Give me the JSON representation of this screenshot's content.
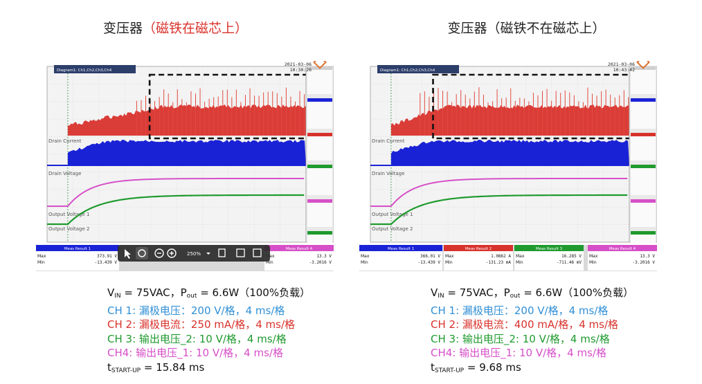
{
  "panels": [
    {
      "title_main": "变压器",
      "title_paren": "（磁铁在磁芯上）",
      "timestamp_date": "2021-03-06",
      "timestamp_time": "10:30:26",
      "diagram_label": "Diagram1: Ch1,Ch2,Ch3,Ch4",
      "traces": {
        "drain_current": "Drain Current",
        "drain_voltage": "Drain Voltage",
        "output_voltage_1": "Output Voltage 1",
        "output_voltage_2": "Output Voltage 2"
      },
      "meas": {
        "result1_title": "Meas Result 1",
        "max_label": "Max",
        "min_label": "Min",
        "max_value": "373.91 V",
        "min_value": "-13.439 V",
        "result4_title": "Meas Result 4",
        "r4_max": "13.3 V",
        "r4_min": "-3.2016 V"
      },
      "toolbar": {
        "zoom": "250%"
      },
      "captions": {
        "line1_v": "V",
        "line1_v_sub": "IN",
        "line1_rest": " = 75VAC，P",
        "line1_p_sub": "out",
        "line1_tail": " = 6.6W（100%负载）",
        "ch1": "CH 1: 漏极电压：200 V/格，4 ms/格",
        "ch2": "CH 2: 漏极电流：250 mA/格，4 ms/格",
        "ch3": "CH 3: 输出电压_2: 10 V/格，4 ms/格",
        "ch4": "CH4: 输出电压_1: 10 V/格，4 ms/格",
        "t_prefix": "t",
        "t_sub": "START-UP",
        "t_value": " = 15.84 ms"
      },
      "chart_data": {
        "type": "line",
        "xlabel": "",
        "ylabel": "",
        "x_unit": "ms",
        "xlim": [
          0,
          40
        ],
        "series": [
          {
            "name": "Drain Current",
            "color": "#d8322c",
            "start_ms": 3.2,
            "steady_ms": 15.84
          },
          {
            "name": "Drain Voltage",
            "color": "#1a22d6",
            "start_ms": 3.2
          },
          {
            "name": "Output Voltage 1",
            "color": "#d64fc8",
            "start_ms": 3.2
          },
          {
            "name": "Output Voltage 2",
            "color": "#1f9a2e",
            "start_ms": 3.2
          }
        ],
        "startup_time_ms": 15.84
      }
    },
    {
      "title_main": "变压器",
      "title_paren": "（磁铁不在磁芯上）",
      "timestamp_date": "2021-03-06",
      "timestamp_time": "10:43:42",
      "diagram_label": "Diagram1: Ch1,Ch2,Ch3,Ch4",
      "traces": {
        "drain_current": "Drain Current",
        "drain_voltage": "Drain Voltage",
        "output_voltage_1": "Output Voltage 1",
        "output_voltage_2": "Output Voltage 2"
      },
      "meas": {
        "result1_title": "Meas Result 1",
        "max_label": "Max",
        "min_label": "Min",
        "max_value": "366.01 V",
        "min_value": "-13.439 V",
        "result2_title": "Meas Result 2",
        "r2_max": "1.0862 A",
        "r2_min": "-131.23 mA",
        "result3_title": "Meas Result 3",
        "r3_max": "16.285 V",
        "r3_min": "-711.46 mV",
        "result4_title": "Meas Result 4",
        "r4_max": "13.3 V",
        "r4_min": "-3.2016 V"
      },
      "captions": {
        "line1_v": "V",
        "line1_v_sub": "IN",
        "line1_rest": " = 75VAC，P",
        "line1_p_sub": "out",
        "line1_tail": " = 6.6W（100%负载）",
        "ch1": "CH 1: 漏极电压：200 V/格，4 ms/格",
        "ch2": "CH 2: 漏极电流：400 mA/格，4 ms/格",
        "ch3": "CH 3: 输出电压_2: 10 V/格，4 ms/格",
        "ch4": "CH4: 输出电压_1: 10 V/格，4 ms/格",
        "t_prefix": "t",
        "t_sub": "START-UP",
        "t_value": " = 9.68 ms"
      },
      "chart_data": {
        "type": "line",
        "xlabel": "",
        "ylabel": "",
        "x_unit": "ms",
        "xlim": [
          0,
          40
        ],
        "series": [
          {
            "name": "Drain Current",
            "color": "#d8322c",
            "start_ms": 3.2,
            "steady_ms": 9.68
          },
          {
            "name": "Drain Voltage",
            "color": "#1a22d6",
            "start_ms": 3.2
          },
          {
            "name": "Output Voltage 1",
            "color": "#d64fc8",
            "start_ms": 3.2
          },
          {
            "name": "Output Voltage 2",
            "color": "#1f9a2e",
            "start_ms": 3.2
          }
        ],
        "startup_time_ms": 9.68
      }
    }
  ]
}
